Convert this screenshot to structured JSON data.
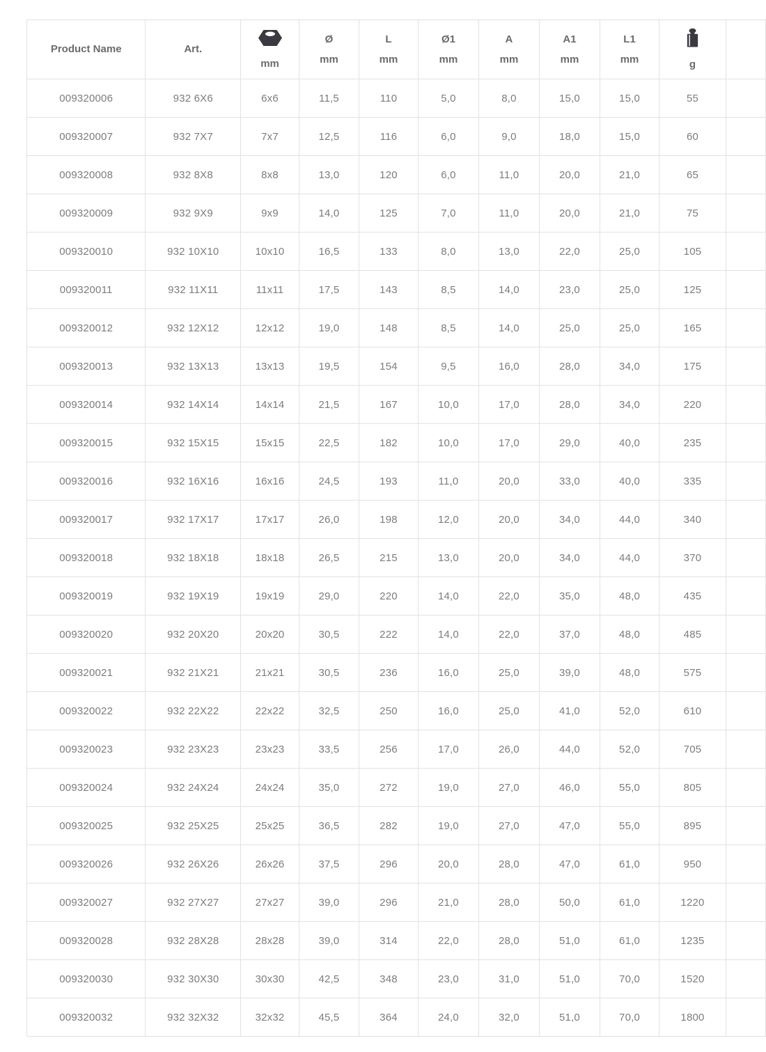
{
  "page": {
    "background": "#ffffff"
  },
  "colors": {
    "border": "#e2e2e2",
    "header_text": "#6b6b6b",
    "cell_text": "#7c7c7c",
    "icon": "#3a3a40"
  },
  "table": {
    "columns": [
      {
        "key": "product-name",
        "label": "Product Name",
        "sub": "",
        "icon": ""
      },
      {
        "key": "art",
        "label": "Art.",
        "sub": "",
        "icon": ""
      },
      {
        "key": "wrench-size",
        "label": "",
        "sub": "mm",
        "icon": "hex-nut-icon"
      },
      {
        "key": "diameter",
        "label": "Ø",
        "sub": "mm",
        "icon": ""
      },
      {
        "key": "length",
        "label": "L",
        "sub": "mm",
        "icon": ""
      },
      {
        "key": "diameter1",
        "label": "Ø1",
        "sub": "mm",
        "icon": ""
      },
      {
        "key": "a",
        "label": "A",
        "sub": "mm",
        "icon": ""
      },
      {
        "key": "a1",
        "label": "A1",
        "sub": "mm",
        "icon": ""
      },
      {
        "key": "l1",
        "label": "L1",
        "sub": "mm",
        "icon": ""
      },
      {
        "key": "weight",
        "label": "",
        "sub": "g",
        "icon": "weight-icon"
      },
      {
        "key": "spacer",
        "label": "",
        "sub": "",
        "icon": ""
      }
    ],
    "rows": [
      [
        "009320006",
        "932 6X6",
        "6x6",
        "11,5",
        "110",
        "5,0",
        "8,0",
        "15,0",
        "15,0",
        "55"
      ],
      [
        "009320007",
        "932 7X7",
        "7x7",
        "12,5",
        "116",
        "6,0",
        "9,0",
        "18,0",
        "15,0",
        "60"
      ],
      [
        "009320008",
        "932 8X8",
        "8x8",
        "13,0",
        "120",
        "6,0",
        "11,0",
        "20,0",
        "21,0",
        "65"
      ],
      [
        "009320009",
        "932 9X9",
        "9x9",
        "14,0",
        "125",
        "7,0",
        "11,0",
        "20,0",
        "21,0",
        "75"
      ],
      [
        "009320010",
        "932 10X10",
        "10x10",
        "16,5",
        "133",
        "8,0",
        "13,0",
        "22,0",
        "25,0",
        "105"
      ],
      [
        "009320011",
        "932 11X11",
        "11x11",
        "17,5",
        "143",
        "8,5",
        "14,0",
        "23,0",
        "25,0",
        "125"
      ],
      [
        "009320012",
        "932 12X12",
        "12x12",
        "19,0",
        "148",
        "8,5",
        "14,0",
        "25,0",
        "25,0",
        "165"
      ],
      [
        "009320013",
        "932 13X13",
        "13x13",
        "19,5",
        "154",
        "9,5",
        "16,0",
        "28,0",
        "34,0",
        "175"
      ],
      [
        "009320014",
        "932 14X14",
        "14x14",
        "21,5",
        "167",
        "10,0",
        "17,0",
        "28,0",
        "34,0",
        "220"
      ],
      [
        "009320015",
        "932 15X15",
        "15x15",
        "22,5",
        "182",
        "10,0",
        "17,0",
        "29,0",
        "40,0",
        "235"
      ],
      [
        "009320016",
        "932 16X16",
        "16x16",
        "24,5",
        "193",
        "11,0",
        "20,0",
        "33,0",
        "40,0",
        "335"
      ],
      [
        "009320017",
        "932 17X17",
        "17x17",
        "26,0",
        "198",
        "12,0",
        "20,0",
        "34,0",
        "44,0",
        "340"
      ],
      [
        "009320018",
        "932 18X18",
        "18x18",
        "26,5",
        "215",
        "13,0",
        "20,0",
        "34,0",
        "44,0",
        "370"
      ],
      [
        "009320019",
        "932 19X19",
        "19x19",
        "29,0",
        "220",
        "14,0",
        "22,0",
        "35,0",
        "48,0",
        "435"
      ],
      [
        "009320020",
        "932 20X20",
        "20x20",
        "30,5",
        "222",
        "14,0",
        "22,0",
        "37,0",
        "48,0",
        "485"
      ],
      [
        "009320021",
        "932 21X21",
        "21x21",
        "30,5",
        "236",
        "16,0",
        "25,0",
        "39,0",
        "48,0",
        "575"
      ],
      [
        "009320022",
        "932 22X22",
        "22x22",
        "32,5",
        "250",
        "16,0",
        "25,0",
        "41,0",
        "52,0",
        "610"
      ],
      [
        "009320023",
        "932 23X23",
        "23x23",
        "33,5",
        "256",
        "17,0",
        "26,0",
        "44,0",
        "52,0",
        "705"
      ],
      [
        "009320024",
        "932 24X24",
        "24x24",
        "35,0",
        "272",
        "19,0",
        "27,0",
        "46,0",
        "55,0",
        "805"
      ],
      [
        "009320025",
        "932 25X25",
        "25x25",
        "36,5",
        "282",
        "19,0",
        "27,0",
        "47,0",
        "55,0",
        "895"
      ],
      [
        "009320026",
        "932 26X26",
        "26x26",
        "37,5",
        "296",
        "20,0",
        "28,0",
        "47,0",
        "61,0",
        "950"
      ],
      [
        "009320027",
        "932 27X27",
        "27x27",
        "39,0",
        "296",
        "21,0",
        "28,0",
        "50,0",
        "61,0",
        "1220"
      ],
      [
        "009320028",
        "932 28X28",
        "28x28",
        "39,0",
        "314",
        "22,0",
        "28,0",
        "51,0",
        "61,0",
        "1235"
      ],
      [
        "009320030",
        "932 30X30",
        "30x30",
        "42,5",
        "348",
        "23,0",
        "31,0",
        "51,0",
        "70,0",
        "1520"
      ],
      [
        "009320032",
        "932 32X32",
        "32x32",
        "45,5",
        "364",
        "24,0",
        "32,0",
        "51,0",
        "70,0",
        "1800"
      ]
    ]
  }
}
